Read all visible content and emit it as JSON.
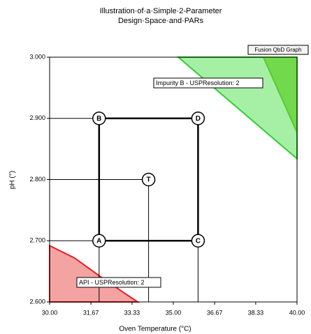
{
  "chart_data": {
    "type": "design-space",
    "title": [
      "Illustration·of·a·Simple·2-Parameter",
      "Design·Space·and·PARs"
    ],
    "badge": "Fusion QbD Graph",
    "x_label": "Oven Temperature (°C)",
    "y_label": "pH (°)",
    "xlim": [
      30,
      40
    ],
    "ylim": [
      2.6,
      3.0
    ],
    "xticks": [
      {
        "value": 30,
        "label": "30.00"
      },
      31.67,
      33.33,
      {
        "value": 35,
        "label": "35.00"
      },
      36.67,
      38.33,
      {
        "value": 40,
        "label": "40.00"
      }
    ],
    "yticks": [
      {
        "value": 2.6,
        "label": "2.600"
      },
      {
        "value": 2.7,
        "label": "2.700"
      },
      {
        "value": 2.8,
        "label": "2.800"
      },
      {
        "value": 2.9,
        "label": "2.900"
      },
      {
        "value": 3.0,
        "label": "3.000"
      }
    ],
    "regions": [
      {
        "name": "Impurity B - USPResolution: 2",
        "color": "#a6f0a6",
        "edge": "#33cc33",
        "x": [
          35.2,
          40,
          40
        ],
        "y": [
          3.0,
          3.0,
          2.834
        ]
      },
      {
        "color": "#72d94c",
        "edge": "#55cc33",
        "x": [
          38.64,
          40,
          40
        ],
        "y": [
          3.0,
          3.0,
          2.877
        ]
      },
      {
        "name": "API - USPResolution: 2",
        "color": "#f4a3a3",
        "edge": "#e02020",
        "x": [
          30,
          31.0,
          32.0,
          33.0,
          33.56,
          30
        ],
        "y": [
          2.692,
          2.672,
          2.643,
          2.615,
          2.6,
          2.6
        ]
      }
    ],
    "points": {
      "labels": [
        "A",
        "B",
        "C",
        "D",
        "T"
      ],
      "x": [
        32,
        32,
        36,
        36,
        34
      ],
      "y": [
        2.7,
        2.9,
        2.7,
        2.9,
        2.8
      ]
    }
  }
}
